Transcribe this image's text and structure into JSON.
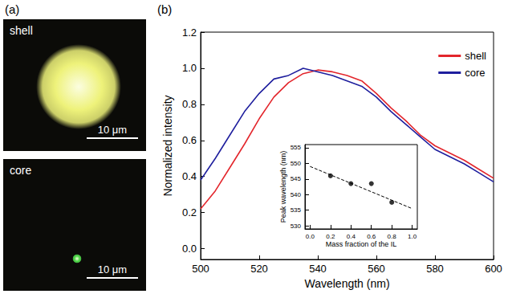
{
  "figure": {
    "panels": [
      {
        "label": "(a)",
        "images": [
          {
            "title": "shell",
            "scale_bar": "10 μm",
            "color": "#eef27a"
          },
          {
            "title": "core",
            "scale_bar": "10 μm",
            "color": "#4fd84a"
          }
        ]
      },
      {
        "label": "(b)"
      }
    ]
  },
  "chart_data": [
    {
      "type": "line",
      "x_label": "Wavelength (nm)",
      "y_label": "Normalized intensity",
      "x": [
        500,
        505,
        510,
        515,
        520,
        525,
        530,
        535,
        540,
        545,
        550,
        555,
        560,
        565,
        570,
        575,
        580,
        585,
        590,
        595,
        600
      ],
      "series": [
        {
          "name": "shell",
          "color": "#e3262c",
          "values": [
            0.22,
            0.32,
            0.45,
            0.58,
            0.72,
            0.84,
            0.92,
            0.97,
            0.99,
            0.98,
            0.96,
            0.93,
            0.86,
            0.78,
            0.71,
            0.63,
            0.57,
            0.53,
            0.49,
            0.44,
            0.39
          ]
        },
        {
          "name": "core",
          "color": "#1f1f9e",
          "values": [
            0.38,
            0.5,
            0.63,
            0.76,
            0.86,
            0.94,
            0.96,
            1.0,
            0.98,
            0.96,
            0.93,
            0.9,
            0.84,
            0.76,
            0.69,
            0.62,
            0.55,
            0.51,
            0.47,
            0.42,
            0.37
          ]
        }
      ],
      "xlim": [
        500,
        600
      ],
      "xticks": [
        500,
        520,
        540,
        560,
        580,
        600
      ],
      "ylim": [
        -0.06,
        1.2
      ],
      "yticks": [
        {
          "value": 0,
          "label": "0.0"
        },
        {
          "value": 0.2,
          "label": "0.2"
        },
        {
          "value": 0.4,
          "label": "0.4"
        },
        {
          "value": 0.6,
          "label": "0.6"
        },
        {
          "value": 0.8,
          "label": "0.8"
        },
        {
          "value": 1.0,
          "label": "1.0"
        },
        {
          "value": 1.2,
          "label": "1.2"
        }
      ],
      "grid": false,
      "legend": "top-right"
    },
    {
      "type": "scatter",
      "x_label": "Mass fraction of the IL",
      "y_label": "Peak wavelength (nm)",
      "series": [
        {
          "type": "scatter",
          "x": [
            0.2,
            0.4,
            0.6,
            0.8
          ],
          "values": [
            546,
            543.5,
            543.5,
            537.5
          ],
          "color": "#000000",
          "marker": "circle"
        },
        {
          "type": "line",
          "x": [
            0,
            1
          ],
          "values": [
            549,
            535.5
          ],
          "color": "#000000",
          "line_style": "dashed"
        }
      ],
      "xlim": [
        -0.05,
        1.05
      ],
      "xticks": [
        {
          "value": 0,
          "label": "0.0"
        },
        {
          "value": 0.2,
          "label": "0.2"
        },
        {
          "value": 0.4,
          "label": "0.4"
        },
        {
          "value": 0.6,
          "label": "0.6"
        },
        {
          "value": 0.8,
          "label": "0.8"
        },
        {
          "value": 1.0,
          "label": "1.0"
        }
      ],
      "ylim": [
        529,
        556
      ],
      "yticks": [
        530,
        535,
        540,
        545,
        550,
        555
      ],
      "grid": false
    }
  ]
}
